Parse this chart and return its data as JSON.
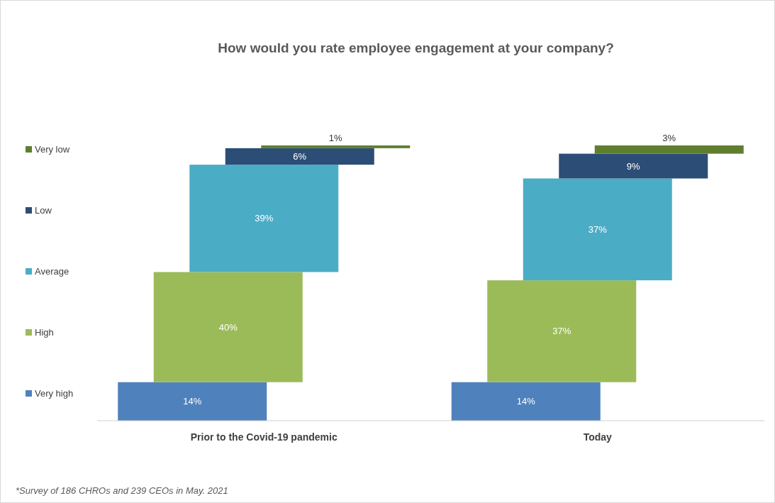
{
  "chart_data": {
    "type": "bar",
    "title": "How would you rate employee engagement at your company?",
    "categories": [
      "Prior to the Covid-19 pandemic",
      "Today"
    ],
    "stacked": true,
    "legend": "left",
    "series": [
      {
        "name": "Very high",
        "color": "#4f81bd",
        "values": [
          14,
          14
        ],
        "value_labels": [
          "14%",
          "14%"
        ]
      },
      {
        "name": "High",
        "color": "#9bbb59",
        "values": [
          40,
          37
        ],
        "value_labels": [
          "40%",
          "37%"
        ]
      },
      {
        "name": "Average",
        "color": "#4bacc6",
        "values": [
          39,
          37
        ],
        "value_labels": [
          "39%",
          "37%"
        ]
      },
      {
        "name": "Low",
        "color": "#2c4d75",
        "values": [
          6,
          9
        ],
        "value_labels": [
          "6%",
          "9%"
        ]
      },
      {
        "name": "Very low",
        "color": "#5f7f2f",
        "values": [
          1,
          3
        ],
        "value_labels": [
          "1%",
          "3%"
        ]
      }
    ],
    "annotations": [
      "*Survey of 186 CHROs and 239 CEOs in May. 2021"
    ]
  }
}
